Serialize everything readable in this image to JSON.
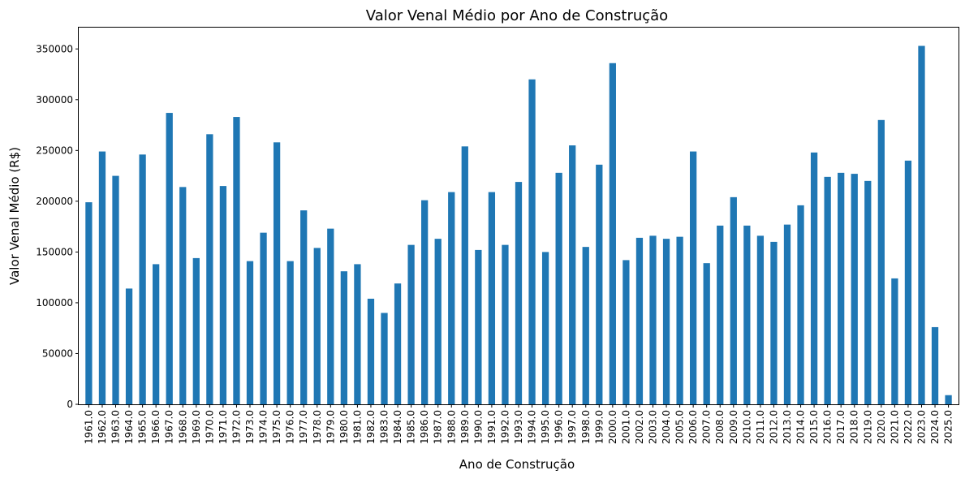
{
  "chart_data": {
    "type": "bar",
    "title": "Valor Venal Médio por Ano de Construção",
    "xlabel": "Ano de Construção",
    "ylabel": "Valor Venal Médio (R$)",
    "ylim": [
      0,
      371000
    ],
    "yticks": [
      0,
      50000,
      100000,
      150000,
      200000,
      250000,
      300000,
      350000
    ],
    "ytick_labels": [
      "0",
      "50000",
      "100000",
      "150000",
      "200000",
      "250000",
      "300000",
      "350000"
    ],
    "grid": false,
    "color": "#1f77b4",
    "categories": [
      "1961.0",
      "1962.0",
      "1963.0",
      "1964.0",
      "1965.0",
      "1966.0",
      "1967.0",
      "1968.0",
      "1969.0",
      "1970.0",
      "1971.0",
      "1972.0",
      "1973.0",
      "1974.0",
      "1975.0",
      "1976.0",
      "1977.0",
      "1978.0",
      "1979.0",
      "1980.0",
      "1981.0",
      "1982.0",
      "1983.0",
      "1984.0",
      "1985.0",
      "1986.0",
      "1987.0",
      "1988.0",
      "1989.0",
      "1990.0",
      "1991.0",
      "1992.0",
      "1993.0",
      "1994.0",
      "1995.0",
      "1996.0",
      "1997.0",
      "1998.0",
      "1999.0",
      "2000.0",
      "2001.0",
      "2002.0",
      "2003.0",
      "2004.0",
      "2005.0",
      "2006.0",
      "2007.0",
      "2008.0",
      "2009.0",
      "2010.0",
      "2011.0",
      "2012.0",
      "2013.0",
      "2014.0",
      "2015.0",
      "2016.0",
      "2017.0",
      "2018.0",
      "2019.0",
      "2020.0",
      "2021.0",
      "2022.0",
      "2023.0",
      "2024.0",
      "2025.0"
    ],
    "values": [
      199000,
      249000,
      225000,
      114000,
      246000,
      138000,
      287000,
      214000,
      144000,
      266000,
      215000,
      283000,
      141000,
      169000,
      258000,
      141000,
      191000,
      154000,
      173000,
      131000,
      138000,
      104000,
      90000,
      119000,
      157000,
      201000,
      163000,
      209000,
      254000,
      152000,
      209000,
      157000,
      219000,
      320000,
      150000,
      228000,
      255000,
      155000,
      236000,
      336000,
      142000,
      164000,
      166000,
      163000,
      165000,
      249000,
      139000,
      176000,
      204000,
      176000,
      166000,
      160000,
      177000,
      196000,
      248000,
      224000,
      228000,
      227000,
      220000,
      280000,
      124000,
      240000,
      353000,
      76000,
      9000
    ]
  }
}
